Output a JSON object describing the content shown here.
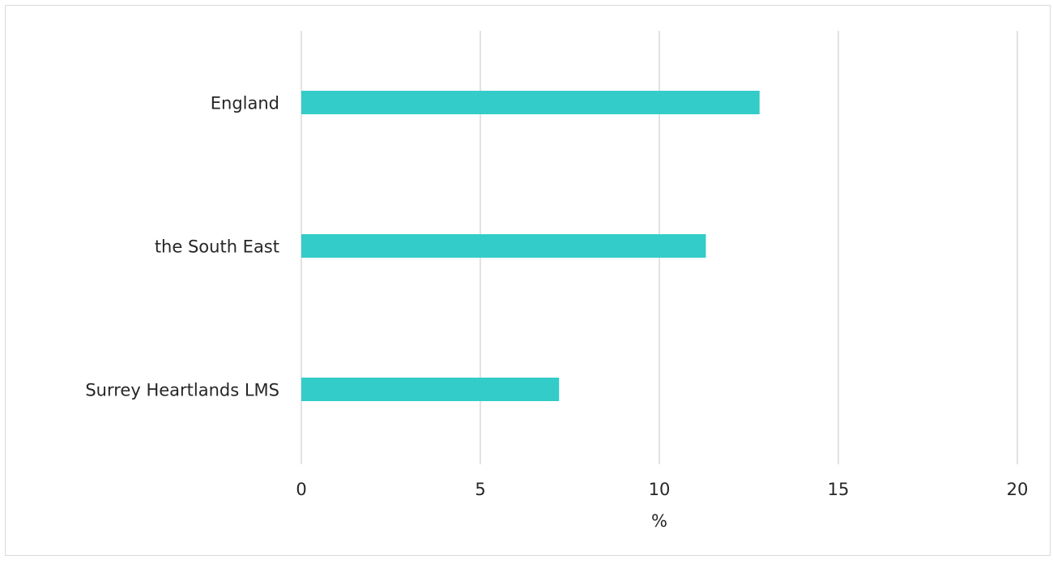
{
  "chart_data": {
    "type": "bar",
    "orientation": "horizontal",
    "title": "",
    "categories": [
      "England",
      "the South East",
      "Surrey Heartlands LMS"
    ],
    "values": [
      12.8,
      11.3,
      7.2
    ],
    "xlabel": "%",
    "ylabel": "",
    "xlim": [
      0,
      20
    ],
    "xticks": [
      "0",
      "5",
      "10",
      "15",
      "20"
    ],
    "grid": "vertical",
    "legend": "none",
    "bar_color": "#33ccc8",
    "grid_color": "#d9d9d9",
    "text_color": "#262626"
  }
}
